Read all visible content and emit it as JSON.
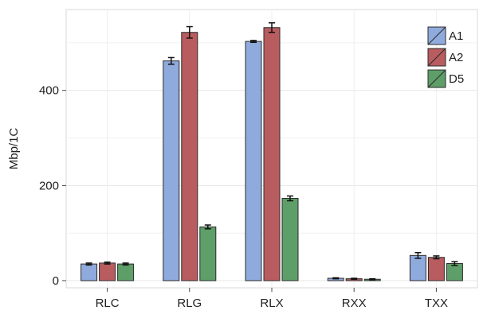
{
  "chart_data": {
    "type": "bar",
    "title": "",
    "xlabel": "",
    "ylabel": "Mbp/1C",
    "categories": [
      "RLC",
      "RLG",
      "RLX",
      "RXX",
      "TXX"
    ],
    "series": [
      {
        "name": "A1",
        "color": "#8faadc",
        "values": [
          35,
          462,
          503,
          5,
          53
        ],
        "errors": [
          2,
          7,
          2,
          1,
          6
        ]
      },
      {
        "name": "A2",
        "color": "#b85c60",
        "values": [
          37,
          522,
          532,
          4,
          49
        ],
        "errors": [
          2,
          12,
          10,
          1,
          3
        ]
      },
      {
        "name": "D5",
        "color": "#5e9e68",
        "values": [
          35,
          113,
          173,
          3,
          36
        ],
        "errors": [
          2,
          4,
          5,
          1,
          4
        ]
      }
    ],
    "ylim": [
      -15,
      570
    ],
    "yticks": [
      0,
      200,
      400
    ],
    "grid": true,
    "legend_position": "top-right"
  }
}
